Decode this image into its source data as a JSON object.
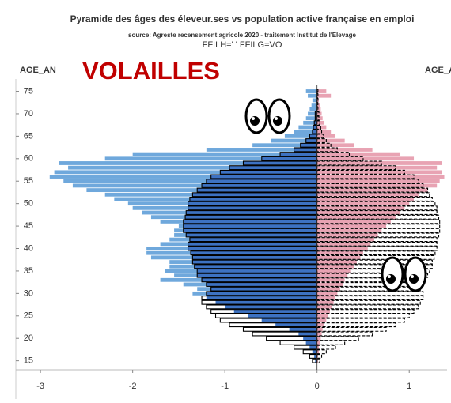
{
  "chart_data": {
    "type": "pyramid",
    "title": "Pyramide des âges des éleveur.ses vs population active française en emploi",
    "subtitle": "source: Agreste recensement agricole 2020 - traitement Institut de l'Elevage",
    "filter": "FFILH=' ' FFILG=VO",
    "y_label_left": "AGE_AN",
    "y_label_right": "AGE_A",
    "annotation": "VOLAILLES",
    "categories": [
      15,
      16,
      17,
      18,
      19,
      20,
      21,
      22,
      23,
      24,
      25,
      26,
      27,
      28,
      29,
      30,
      31,
      32,
      33,
      34,
      35,
      36,
      37,
      38,
      39,
      40,
      41,
      42,
      43,
      44,
      45,
      46,
      47,
      48,
      49,
      50,
      51,
      52,
      53,
      54,
      55,
      56,
      57,
      58,
      59,
      60,
      61,
      62,
      63,
      64,
      65,
      66,
      67,
      68,
      69,
      70,
      71,
      72,
      73,
      74,
      75
    ],
    "series": [
      {
        "color": "#6fa8dc",
        "fill": true,
        "values": [
          -0.02,
          -0.03,
          -0.05,
          -0.08,
          -0.12,
          -0.15,
          -0.2,
          -0.3,
          -0.45,
          -0.6,
          -0.75,
          -0.9,
          -1.0,
          -1.1,
          -1.2,
          -1.35,
          -1.3,
          -1.45,
          -1.7,
          -1.55,
          -1.65,
          -1.6,
          -1.6,
          -1.8,
          -1.85,
          -1.85,
          -1.7,
          -1.6,
          -1.55,
          -1.55,
          -1.5,
          -1.7,
          -1.8,
          -1.9,
          -2.0,
          -2.05,
          -2.2,
          -2.3,
          -2.5,
          -2.65,
          -2.75,
          -2.9,
          -2.85,
          -2.7,
          -2.8,
          -2.3,
          -2.0,
          -1.2,
          -0.7,
          -0.5,
          -0.35,
          -0.25,
          -0.2,
          -0.15,
          -0.12,
          -0.1,
          -0.08,
          -0.06,
          -0.05,
          -0.1,
          -0.12
        ]
      },
      {
        "color": "#000000",
        "fill": false,
        "dash": false,
        "values": [
          -0.05,
          -0.08,
          -0.15,
          -0.25,
          -0.4,
          -0.55,
          -0.7,
          -0.8,
          -0.95,
          -1.05,
          -1.1,
          -1.15,
          -1.2,
          -1.25,
          -1.25,
          -1.2,
          -1.15,
          -1.2,
          -1.25,
          -1.3,
          -1.3,
          -1.33,
          -1.35,
          -1.35,
          -1.37,
          -1.4,
          -1.4,
          -1.38,
          -1.42,
          -1.45,
          -1.45,
          -1.45,
          -1.43,
          -1.42,
          -1.4,
          -1.4,
          -1.38,
          -1.35,
          -1.3,
          -1.25,
          -1.2,
          -1.15,
          -1.05,
          -0.95,
          -0.8,
          -0.6,
          -0.4,
          -0.25,
          -0.18,
          -0.12,
          -0.08,
          -0.05,
          -0.04,
          -0.03,
          -0.02,
          -0.02,
          -0.01,
          -0.01,
          -0.01,
          -0.01,
          -0.01
        ]
      },
      {
        "color": "#e8a3b3",
        "fill": true,
        "values": [
          0.01,
          0.01,
          0.02,
          0.02,
          0.03,
          0.04,
          0.05,
          0.06,
          0.08,
          0.1,
          0.12,
          0.14,
          0.16,
          0.18,
          0.2,
          0.22,
          0.25,
          0.28,
          0.3,
          0.33,
          0.36,
          0.4,
          0.43,
          0.47,
          0.5,
          0.55,
          0.58,
          0.62,
          0.66,
          0.7,
          0.75,
          0.8,
          0.85,
          0.9,
          0.95,
          1.0,
          1.05,
          1.1,
          1.2,
          1.3,
          1.33,
          1.38,
          1.35,
          1.3,
          1.35,
          1.05,
          0.9,
          0.6,
          0.4,
          0.3,
          0.2,
          0.15,
          0.1,
          0.08,
          0.06,
          0.05,
          0.04,
          0.03,
          0.02,
          0.15,
          0.1
        ]
      },
      {
        "color": "#000000",
        "fill": false,
        "dash": true,
        "values": [
          0.03,
          0.05,
          0.1,
          0.2,
          0.3,
          0.45,
          0.6,
          0.75,
          0.85,
          0.95,
          1.0,
          1.05,
          1.1,
          1.12,
          1.15,
          1.15,
          1.12,
          1.15,
          1.18,
          1.2,
          1.22,
          1.25,
          1.25,
          1.27,
          1.28,
          1.3,
          1.3,
          1.3,
          1.32,
          1.33,
          1.33,
          1.33,
          1.32,
          1.3,
          1.3,
          1.28,
          1.25,
          1.22,
          1.2,
          1.15,
          1.1,
          1.05,
          0.95,
          0.85,
          0.7,
          0.5,
          0.35,
          0.22,
          0.15,
          0.1,
          0.07,
          0.05,
          0.04,
          0.03,
          0.02,
          0.02,
          0.01,
          0.01,
          0.01,
          0.01,
          0.01
        ]
      }
    ],
    "overlap_color": "#3d72c2",
    "xlim": [
      -3.25,
      1.41
    ],
    "xticks": [
      -3,
      -2,
      -1,
      0,
      1
    ],
    "ylim": [
      13,
      76.5
    ],
    "yticks": [
      15,
      20,
      25,
      30,
      35,
      40,
      45,
      50,
      55,
      60,
      65,
      70,
      75
    ]
  }
}
